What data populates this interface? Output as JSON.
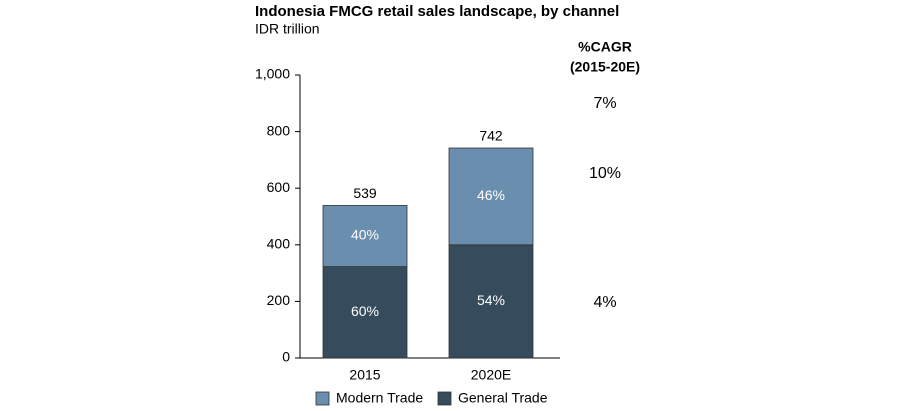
{
  "chart_data": {
    "type": "stacked_bar",
    "title": "Indonesia FMCG retail sales landscape, by channel",
    "subtitle": "IDR trillion",
    "categories": [
      "2015",
      "2020E"
    ],
    "series": [
      {
        "name": "General Trade",
        "color": "#364b5c",
        "values": [
          323,
          400
        ],
        "segment_labels": [
          "60%",
          "54%"
        ]
      },
      {
        "name": "Modern Trade",
        "color": "#6a8eae",
        "values": [
          216,
          342
        ],
        "segment_labels": [
          "40%",
          "46%"
        ]
      }
    ],
    "totals": [
      539,
      742
    ],
    "ylim": [
      0,
      1000
    ],
    "yticks": [
      0,
      200,
      400,
      600,
      800,
      {
        "value": 1000,
        "label": "1,000"
      }
    ],
    "grid": false,
    "cagr": {
      "title": [
        "%CAGR",
        "(2015-20E)"
      ],
      "total": "7%",
      "modern_trade": "10%",
      "general_trade": "4%"
    }
  }
}
